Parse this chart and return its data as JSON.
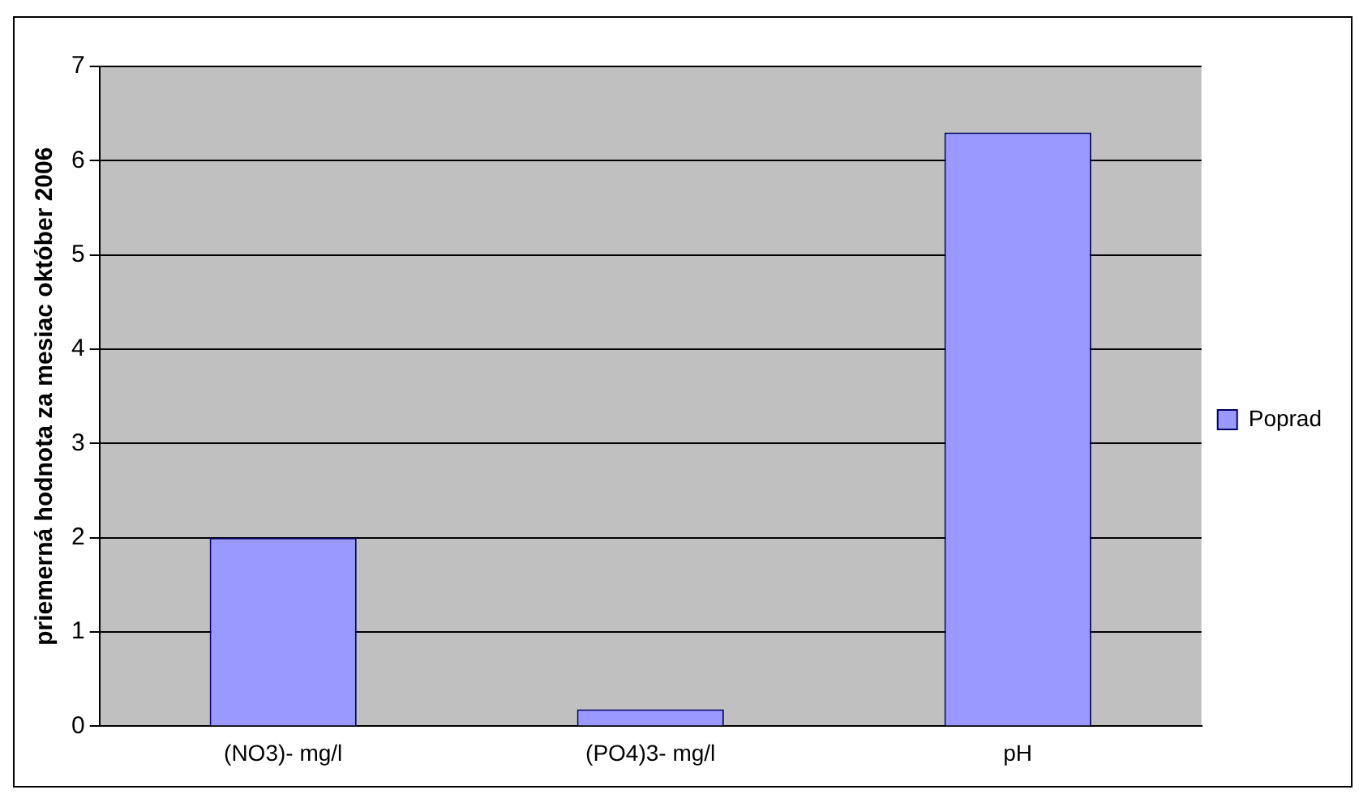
{
  "chart_data": {
    "type": "bar",
    "ylabel": "priemerná hodnota za mesiac október 2006",
    "categories": [
      "(NO3)- mg/l",
      "(PO4)3- mg/l",
      "pH"
    ],
    "series": [
      {
        "name": "Poprad",
        "color": "#9999ff",
        "values": [
          2.0,
          0.18,
          6.3
        ]
      }
    ],
    "ylim": [
      0,
      7
    ],
    "yticks": [
      0,
      1,
      2,
      3,
      4,
      5,
      6,
      7
    ],
    "grid": "y",
    "legend": "right"
  }
}
